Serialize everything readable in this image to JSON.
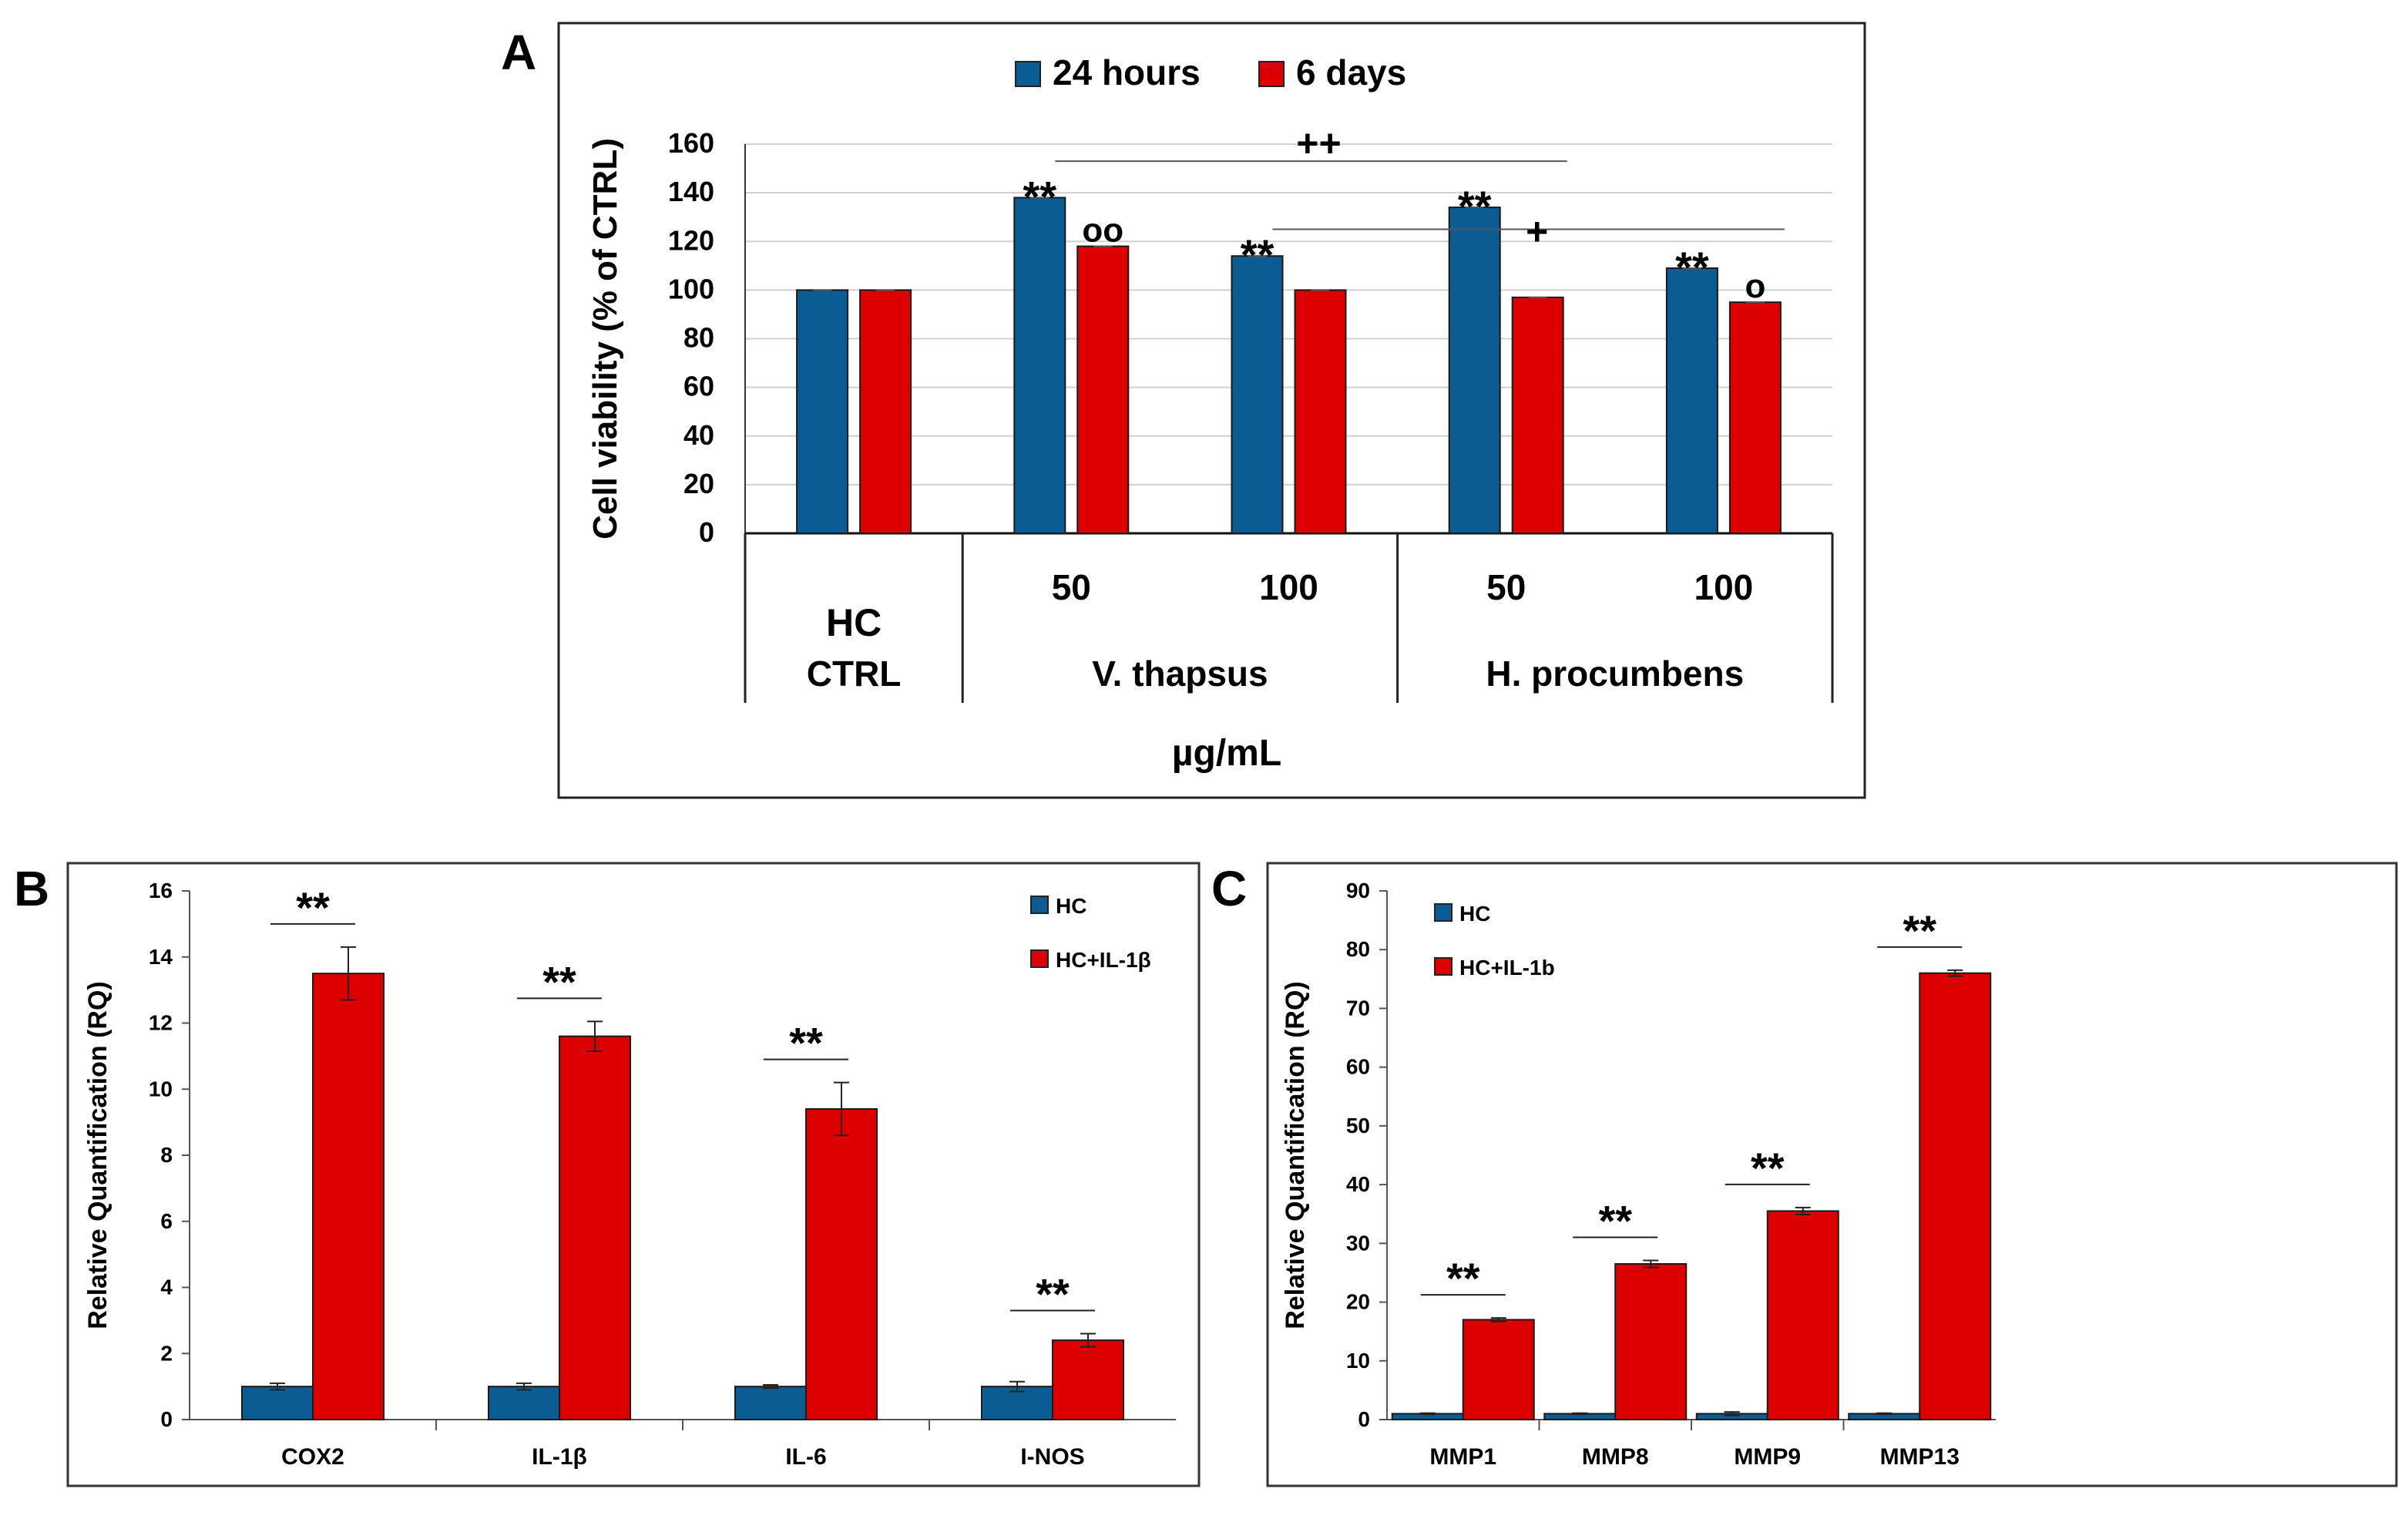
{
  "chart_data": [
    {
      "panel": "A",
      "type": "bar",
      "title": "",
      "ylabel": "Cell viability  (% of CTRL)",
      "xlabel": "µg/mL",
      "ylim": [
        0,
        160
      ],
      "yticks": [
        0,
        20,
        40,
        60,
        80,
        100,
        120,
        140,
        160
      ],
      "categories": [
        "HC",
        "50",
        "100",
        "50",
        "100"
      ],
      "groups": [
        {
          "label": "CTRL",
          "sublabel": "HC",
          "categories": [
            0
          ]
        },
        {
          "label": "V.  thapsus",
          "categories": [
            1,
            2
          ]
        },
        {
          "label": "H. procumbens",
          "categories": [
            3,
            4
          ]
        }
      ],
      "series": [
        {
          "name": "24 hours",
          "color": "#0b5c93",
          "values": [
            100,
            138,
            114,
            134,
            109
          ]
        },
        {
          "name": "6 days",
          "color": "#dd0000",
          "values": [
            100,
            118,
            100,
            97,
            95
          ]
        }
      ],
      "point_marks": [
        {
          "category": 1,
          "series": 0,
          "text": "**"
        },
        {
          "category": 1,
          "series": 1,
          "text": "oo"
        },
        {
          "category": 2,
          "series": 0,
          "text": "**"
        },
        {
          "category": 3,
          "series": 0,
          "text": "**"
        },
        {
          "category": 4,
          "series": 0,
          "text": "**"
        },
        {
          "category": 4,
          "series": 1,
          "text": "o"
        }
      ],
      "brackets": [
        {
          "from_category": 1,
          "to_category": 3,
          "level": 153,
          "text": "++"
        },
        {
          "from_category": 2,
          "to_category": 4,
          "level": 125,
          "text": "+"
        }
      ],
      "legend": "top",
      "grid": true
    },
    {
      "panel": "B",
      "type": "bar",
      "ylabel": "Relative Quantification  (RQ)",
      "ylim": [
        0,
        16
      ],
      "yticks": [
        0,
        2,
        4,
        6,
        8,
        10,
        12,
        14,
        16
      ],
      "categories": [
        "COX2",
        "IL-1β",
        "IL-6",
        "I-NOS"
      ],
      "series": [
        {
          "name": "HC",
          "color": "#0b5c93",
          "values": [
            1.0,
            1.0,
            1.0,
            1.0
          ],
          "errors": [
            0.1,
            0.1,
            0.05,
            0.15
          ]
        },
        {
          "name": "HC+IL-1β",
          "color": "#dd0000",
          "values": [
            13.5,
            11.6,
            9.4,
            2.4
          ],
          "errors": [
            0.8,
            0.45,
            0.8,
            0.2
          ]
        }
      ],
      "significance": [
        "**",
        "**",
        "**",
        "**"
      ],
      "legend": "top-right",
      "grid": false
    },
    {
      "panel": "C",
      "type": "bar",
      "ylabel": "Relative Quantification  (RQ)",
      "ylim": [
        0,
        90
      ],
      "yticks": [
        0,
        10,
        20,
        30,
        40,
        50,
        60,
        70,
        80,
        90
      ],
      "categories": [
        "MMP1",
        "MMP8",
        "MMP9",
        "MMP13"
      ],
      "series": [
        {
          "name": "HC",
          "color": "#0b5c93",
          "values": [
            1.0,
            1.0,
            1.0,
            1.0
          ],
          "errors": [
            0.1,
            0.1,
            0.3,
            0.1
          ]
        },
        {
          "name": "HC+IL-1b",
          "color": "#dd0000",
          "values": [
            17.0,
            26.5,
            35.5,
            76.0
          ],
          "errors": [
            0.3,
            0.6,
            0.6,
            0.5
          ]
        }
      ],
      "significance": [
        "**",
        "**",
        "**",
        "**"
      ],
      "legend": "top-left",
      "grid": false
    }
  ]
}
